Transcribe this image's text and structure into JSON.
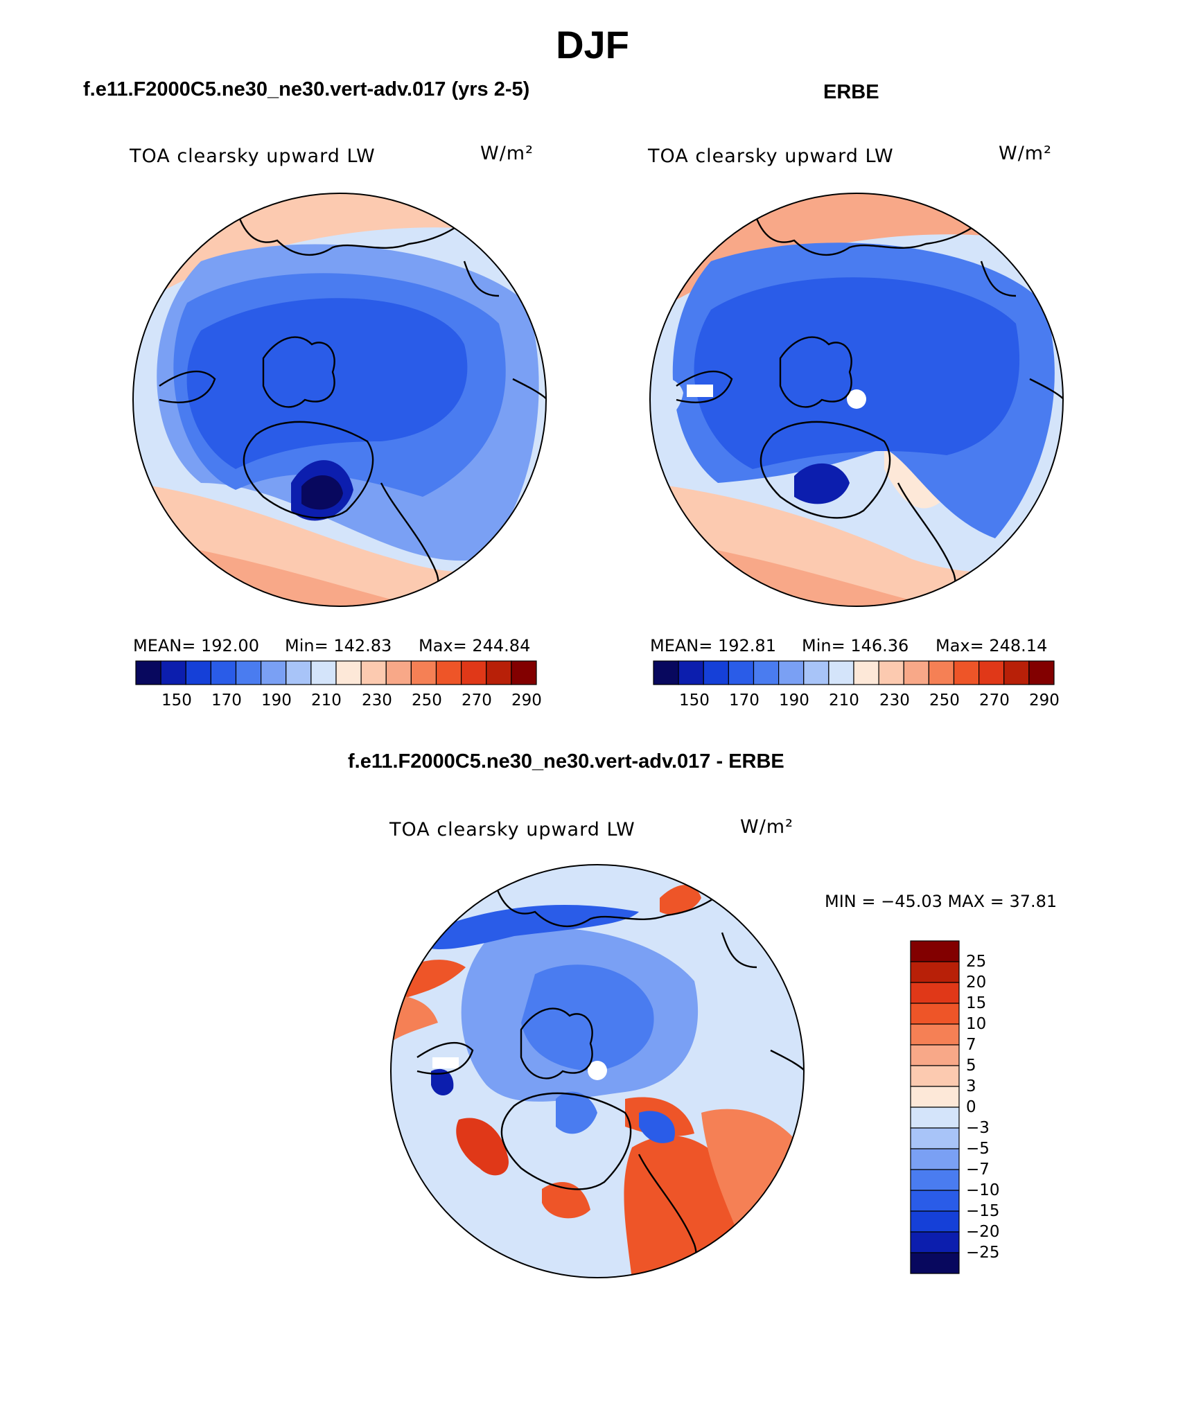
{
  "figure": {
    "title": "DJF",
    "quantity_label": "TOA clearsky upward LW",
    "units": "W/m²"
  },
  "colors": {
    "absolute_scale": [
      "#08085e",
      "#0c1eae",
      "#1540d8",
      "#2a5ce8",
      "#4a7cf0",
      "#7aa0f4",
      "#a8c4f8",
      "#d4e4fa",
      "#fde8d8",
      "#fccab0",
      "#f8a888",
      "#f58055",
      "#ee5528",
      "#e03818",
      "#b82008",
      "#820000"
    ],
    "difference_scale": [
      "#08085e",
      "#0c1eae",
      "#1540d8",
      "#2a5ce8",
      "#4a7cf0",
      "#7aa0f4",
      "#a8c4f8",
      "#d4e4fa",
      "#fde8d8",
      "#fccab0",
      "#f8a888",
      "#f58055",
      "#ee5528",
      "#e03818",
      "#b82008",
      "#820000"
    ],
    "coastline": "#000000",
    "missing": "#ffffff"
  },
  "panels": {
    "model": {
      "title": "f.e11.F2000C5.ne30_ne30.vert-adv.017 (yrs 2-5)",
      "mean_text": "MEAN= 192.00",
      "min_text": "Min= 142.83",
      "max_text": "Max= 244.84"
    },
    "obs": {
      "title": "ERBE",
      "mean_text": "MEAN= 192.81",
      "min_text": "Min= 146.36",
      "max_text": "Max= 248.14"
    },
    "diff": {
      "title": "f.e11.F2000C5.ne30_ne30.vert-adv.017 - ERBE",
      "minmax_text": "MIN = −45.03 MAX =  37.81"
    }
  },
  "colorbars": {
    "absolute_ticks": [
      "150",
      "170",
      "190",
      "210",
      "230",
      "250",
      "270",
      "290"
    ],
    "difference_ticks": [
      "25",
      "20",
      "15",
      "10",
      "7",
      "5",
      "3",
      "0",
      "−3",
      "−5",
      "−7",
      "−10",
      "−15",
      "−20",
      "−25"
    ]
  }
}
